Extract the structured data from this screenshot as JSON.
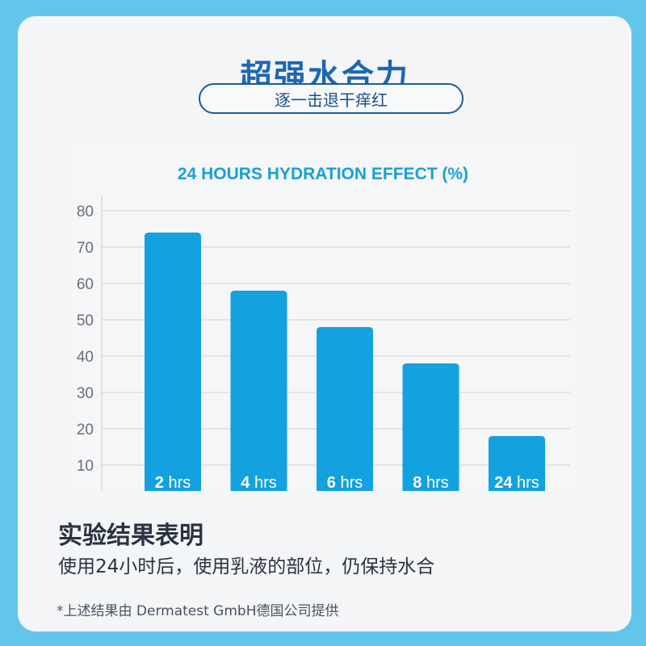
{
  "headline": "超强水合力",
  "subheadline": "逐一击退干痒红",
  "chart_data": {
    "type": "bar",
    "title": "24 HOURS HYDRATION EFFECT (%)",
    "categories": [
      "2 hrs",
      "4 hrs",
      "6 hrs",
      "8 hrs",
      "24 hrs"
    ],
    "values": [
      74,
      58,
      48,
      38,
      18
    ],
    "ylim": [
      0,
      80
    ],
    "yticks": [
      10,
      20,
      30,
      40,
      50,
      60,
      70,
      80
    ],
    "grid": true,
    "bar_color": "#14a1df",
    "title_color": "#17a0d6"
  },
  "conclusion": {
    "title": "实验结果表明",
    "body": "使用24小时后，使用乳液的部位，仍保持水合"
  },
  "footnote": "*上述结果由 Dermatest GmbH德国公司提供"
}
